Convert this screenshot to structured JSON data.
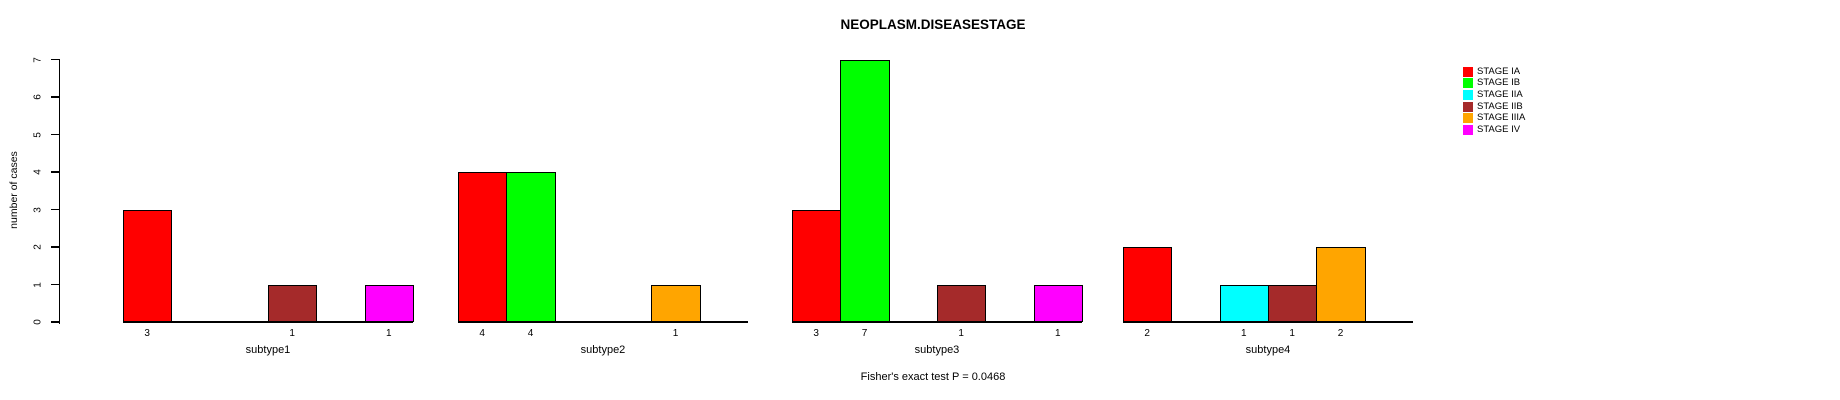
{
  "title": "NEOPLASM.DISEASESTAGE",
  "y_axis": {
    "label": "number of cases",
    "tick_labels": [
      "0",
      "1",
      "2",
      "3",
      "4",
      "5",
      "6",
      "7"
    ]
  },
  "annotation": "Fisher's exact test P = 0.0468",
  "legend": {
    "position": "right",
    "items": [
      {
        "label": "STAGE IA",
        "color": "#FF0000"
      },
      {
        "label": "STAGE IB",
        "color": "#00FF00"
      },
      {
        "label": "STAGE IIA",
        "color": "#00FFFF"
      },
      {
        "label": "STAGE IIB",
        "color": "#A52A2A"
      },
      {
        "label": "STAGE IIIA",
        "color": "#FFA500"
      },
      {
        "label": "STAGE IV",
        "color": "#FF00FF"
      }
    ]
  },
  "chart_data": {
    "type": "bar",
    "title": "NEOPLASM.DISEASESTAGE",
    "xlabel": "",
    "ylabel": "number of cases",
    "ylim": [
      0,
      7
    ],
    "yticks": [
      0,
      1,
      2,
      3,
      4,
      5,
      6,
      7
    ],
    "grid": false,
    "legend_position": "right",
    "bar_value_labels": true,
    "categories": [
      "subtype1",
      "subtype2",
      "subtype3",
      "subtype4"
    ],
    "series": [
      {
        "name": "STAGE IA",
        "color": "#FF0000",
        "values": [
          3,
          4,
          3,
          2
        ]
      },
      {
        "name": "STAGE IB",
        "color": "#00FF00",
        "values": [
          0,
          4,
          7,
          0
        ]
      },
      {
        "name": "STAGE IIA",
        "color": "#00FFFF",
        "values": [
          0,
          0,
          0,
          1
        ]
      },
      {
        "name": "STAGE IIB",
        "color": "#A52A2A",
        "values": [
          1,
          0,
          1,
          1
        ]
      },
      {
        "name": "STAGE IIIA",
        "color": "#FFA500",
        "values": [
          0,
          1,
          0,
          2
        ]
      },
      {
        "name": "STAGE IV",
        "color": "#FF00FF",
        "values": [
          1,
          0,
          1,
          0
        ]
      }
    ],
    "annotation": "Fisher's exact test P = 0.0468"
  }
}
